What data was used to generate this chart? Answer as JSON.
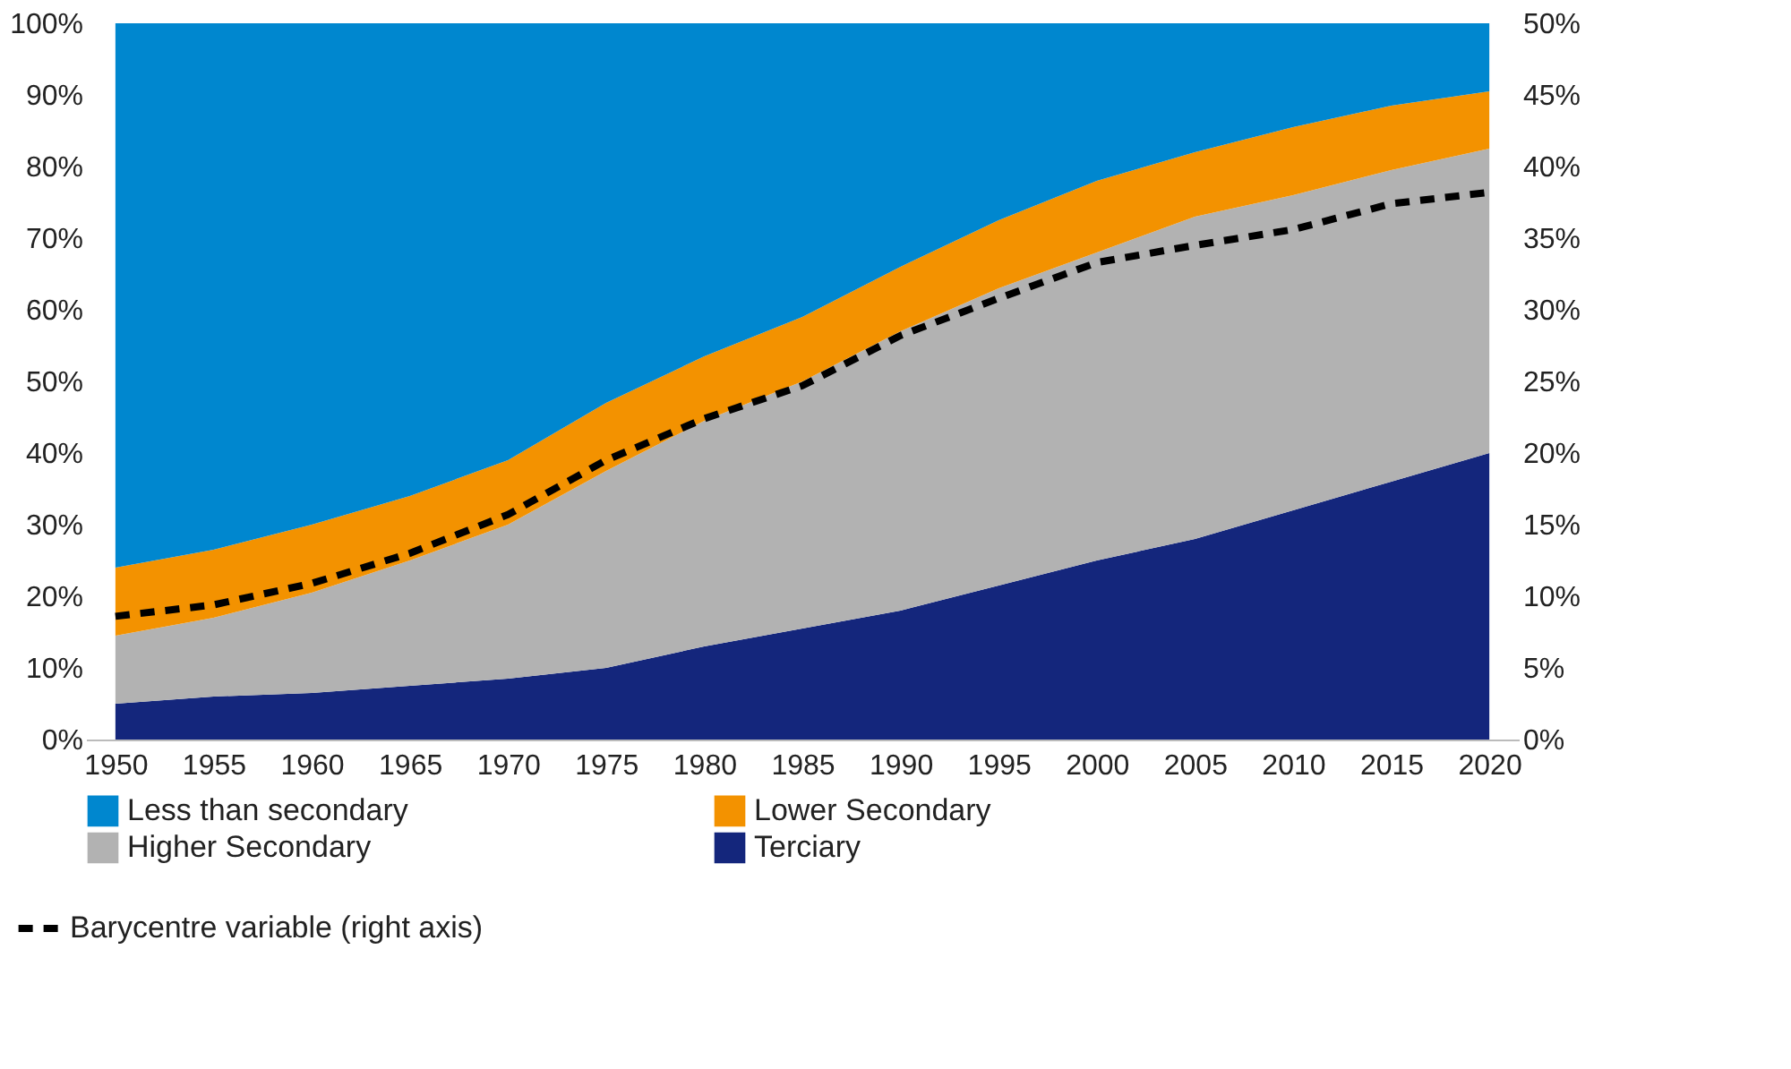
{
  "chart_data": {
    "type": "area",
    "stacked": true,
    "categories": [
      "1950",
      "1955",
      "1960",
      "1965",
      "1970",
      "1975",
      "1980",
      "1985",
      "1990",
      "1995",
      "2000",
      "2005",
      "2010",
      "2015",
      "2020"
    ],
    "series": [
      {
        "name": "Terciary",
        "color": "#14267c",
        "values": [
          5,
          6,
          6.5,
          7.5,
          8.5,
          10,
          13,
          15.5,
          18,
          21.5,
          25,
          28,
          32,
          36,
          40
        ]
      },
      {
        "name": "Higher Secondary",
        "color": "#b2b2b2",
        "values": [
          9.5,
          11,
          14,
          17.5,
          21.5,
          27.5,
          31.5,
          34.5,
          39,
          41.5,
          43,
          45,
          44,
          43.5,
          42.5
        ]
      },
      {
        "name": "Lower Secondary",
        "color": "#f39200",
        "values": [
          9.5,
          9.5,
          9.5,
          9,
          9,
          9.5,
          9,
          9,
          9,
          9.5,
          10,
          9,
          9.5,
          9,
          8
        ]
      },
      {
        "name": "Less than secondary",
        "color": "#0087cf",
        "values": [
          76,
          73.5,
          70,
          66,
          61,
          53,
          46.5,
          41,
          34,
          27.5,
          22,
          18,
          14.5,
          11.5,
          9.5
        ]
      },
      {
        "name": "Barycentre variable (right axis)",
        "type": "line",
        "axis": "y2",
        "line_style": "dashed",
        "color": "#000000",
        "values": [
          8.6,
          9.4,
          10.9,
          13,
          15.7,
          19.5,
          22.4,
          24.7,
          28.2,
          30.8,
          33.3,
          34.5,
          35.6,
          37.4,
          38.2
        ]
      }
    ],
    "ylim": [
      0,
      100
    ],
    "yticks": [
      {
        "value": 0,
        "label": "0%"
      },
      {
        "value": 10,
        "label": "10%"
      },
      {
        "value": 20,
        "label": "20%"
      },
      {
        "value": 30,
        "label": "30%"
      },
      {
        "value": 40,
        "label": "40%"
      },
      {
        "value": 50,
        "label": "50%"
      },
      {
        "value": 60,
        "label": "60%"
      },
      {
        "value": 70,
        "label": "70%"
      },
      {
        "value": 80,
        "label": "80%"
      },
      {
        "value": 90,
        "label": "90%"
      },
      {
        "value": 100,
        "label": "100%"
      }
    ],
    "y2lim": [
      0,
      50
    ],
    "y2ticks": [
      {
        "value": 0,
        "label": "0%"
      },
      {
        "value": 5,
        "label": "5%"
      },
      {
        "value": 10,
        "label": "10%"
      },
      {
        "value": 15,
        "label": "15%"
      },
      {
        "value": 20,
        "label": "20%"
      },
      {
        "value": 25,
        "label": "25%"
      },
      {
        "value": 30,
        "label": "30%"
      },
      {
        "value": 35,
        "label": "35%"
      },
      {
        "value": 40,
        "label": "40%"
      },
      {
        "value": 45,
        "label": "45%"
      },
      {
        "value": 50,
        "label": "50%"
      }
    ],
    "grid": false,
    "legend": "bottom"
  }
}
